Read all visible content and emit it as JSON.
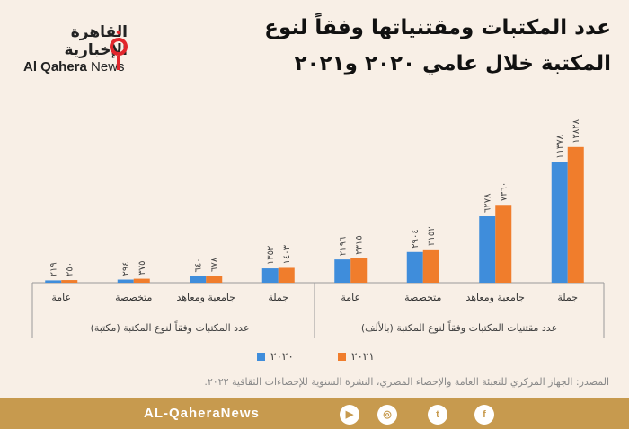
{
  "title": {
    "line1": "عدد المكتبات ومقتنياتها وفقاً لنوع",
    "line2": "المكتبة خلال عامي ٢٠٢٠ و٢٠٢١"
  },
  "logo": {
    "arabic": "القاهرة الإخبارية",
    "english_bold": "Al Qahera",
    "english_light": "News"
  },
  "chart_data": {
    "type": "bar",
    "categories": [
      "جملة",
      "جامعية ومعاهد",
      "متخصصة",
      "عامة",
      "جملة",
      "جامعية ومعاهد",
      "متخصصة",
      "عامة"
    ],
    "category_order": "right-to-left",
    "groups": [
      {
        "label": "عدد مقتنيات المكتبات وفقاً لنوع المكتبة (بالألف)",
        "categories": [
          0,
          1,
          2,
          3
        ]
      },
      {
        "label": "عدد المكتبات وفقاً لنوع المكتبة (مكتبة)",
        "categories": [
          4,
          5,
          6,
          7
        ]
      }
    ],
    "series": [
      {
        "name": "٢٠٢٠",
        "color": "#3f8ddb",
        "values": [
          11378,
          6278,
          2904,
          2196,
          1352,
          640,
          294,
          219
        ],
        "labels": [
          "١١٣٧٨",
          "٦٢٧٨",
          "٢٩٠٤",
          "٢١٩٦",
          "١٣٥٢",
          "٦٤٠",
          "٢٩٤",
          "٢١٩"
        ]
      },
      {
        "name": "٢٠٢١",
        "color": "#f07d2c",
        "values": [
          12828,
          7360,
          3152,
          2315,
          1403,
          678,
          375,
          250
        ],
        "labels": [
          "١٢٨٢٨",
          "٧٣٦٠",
          "٣١٥٢",
          "٢٣١٥",
          "١٤٠٣",
          "٦٧٨",
          "٣٧٥",
          "٢٥٠"
        ]
      }
    ],
    "ylim": [
      0,
      14000
    ],
    "legend_position": "bottom"
  },
  "legend": {
    "item_2020": "٢٠٢٠",
    "item_2021": "٢٠٢١"
  },
  "source": "المصدر: الجهاز المركزي للتعبئة العامة والإحصاء المصري، النشرة السنوية للإحصاءات الثقافية ٢٠٢٢.",
  "footer": {
    "brand": "AL-QaheraNews",
    "social": [
      {
        "icon": "facebook-icon",
        "glyph": "f"
      },
      {
        "icon": "twitter-icon",
        "glyph": "t"
      },
      {
        "icon": "instagram-icon",
        "glyph": "◎"
      },
      {
        "icon": "youtube-icon",
        "glyph": "▶"
      }
    ]
  },
  "colors": {
    "background": "#f8efe6",
    "footer": "#c79a4e",
    "series_2020": "#3f8ddb",
    "series_2021": "#f07d2c"
  }
}
